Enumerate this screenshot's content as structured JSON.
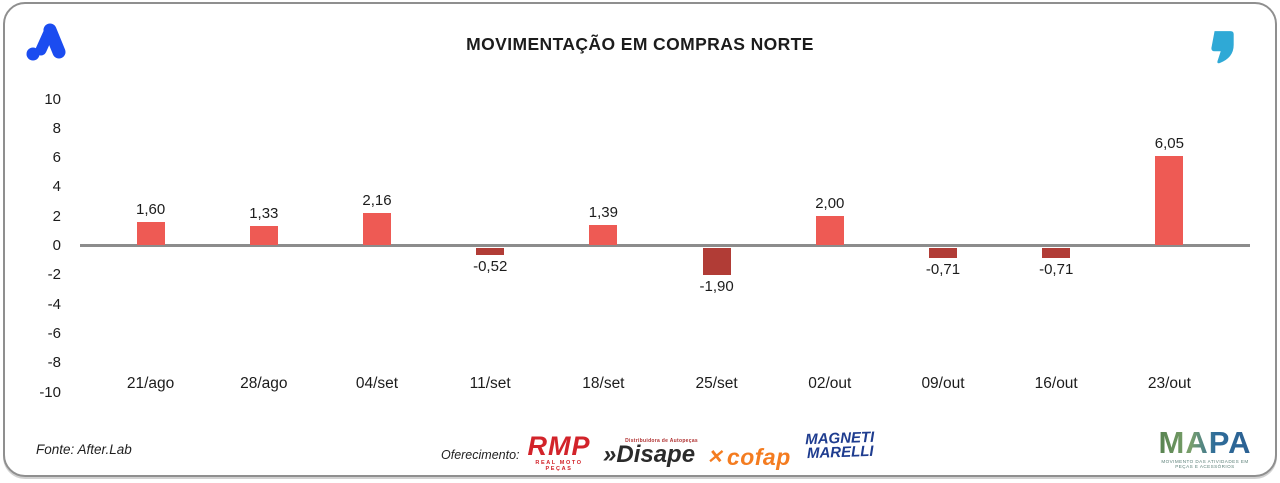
{
  "header": {
    "title": "MOVIMENTAÇÃO EM COMPRAS NORTE",
    "corner_logo_color": "#1b4cf0",
    "quote_logo_color": "#2fa9d6"
  },
  "chart_data": {
    "type": "bar",
    "title": "MOVIMENTAÇÃO EM COMPRAS NORTE",
    "categories": [
      "21/ago",
      "28/ago",
      "04/set",
      "11/set",
      "18/set",
      "25/set",
      "02/out",
      "09/out",
      "16/out",
      "23/out"
    ],
    "values": [
      1.6,
      1.33,
      2.16,
      -0.52,
      1.39,
      -1.9,
      2.0,
      -0.71,
      -0.71,
      6.05
    ],
    "value_labels": [
      "1,60",
      "1,33",
      "2,16",
      "-0,52",
      "1,39",
      "-1,90",
      "2,00",
      "-0,71",
      "-0,71",
      "6,05"
    ],
    "xlabel": "",
    "ylabel": "",
    "ylim": [
      -10,
      10
    ],
    "yticks": [
      10,
      8,
      6,
      4,
      2,
      0,
      -2,
      -4,
      -6,
      -8,
      -10
    ],
    "grid": false,
    "legend": false,
    "positive_color": "#ee5a54",
    "negative_color": "#b13c36",
    "zero_line_color": "#8c8c8c"
  },
  "footer": {
    "source": "Fonte: After.Lab",
    "sponsor_label": "Oferecimento:",
    "sponsors": [
      {
        "name": "RMP",
        "subtitle": "REAL MOTO PEÇAS",
        "color": "#d2232a"
      },
      {
        "prefix": "»",
        "name": "Disape",
        "subtitle": "Distribuidora de Autopeças",
        "color": "#2b2b2b"
      },
      {
        "name": "cofap",
        "icon": "cofap-x-icon",
        "color": "#f47c20"
      },
      {
        "name": "MAGNETI",
        "name2": "MARELLI",
        "color": "#1e3c8f"
      }
    ],
    "mapa": {
      "name": "MAPA",
      "subtitle": "MOVIMENTO DAS ATIVIDADES EM PEÇAS E ACESSÓRIOS"
    }
  }
}
